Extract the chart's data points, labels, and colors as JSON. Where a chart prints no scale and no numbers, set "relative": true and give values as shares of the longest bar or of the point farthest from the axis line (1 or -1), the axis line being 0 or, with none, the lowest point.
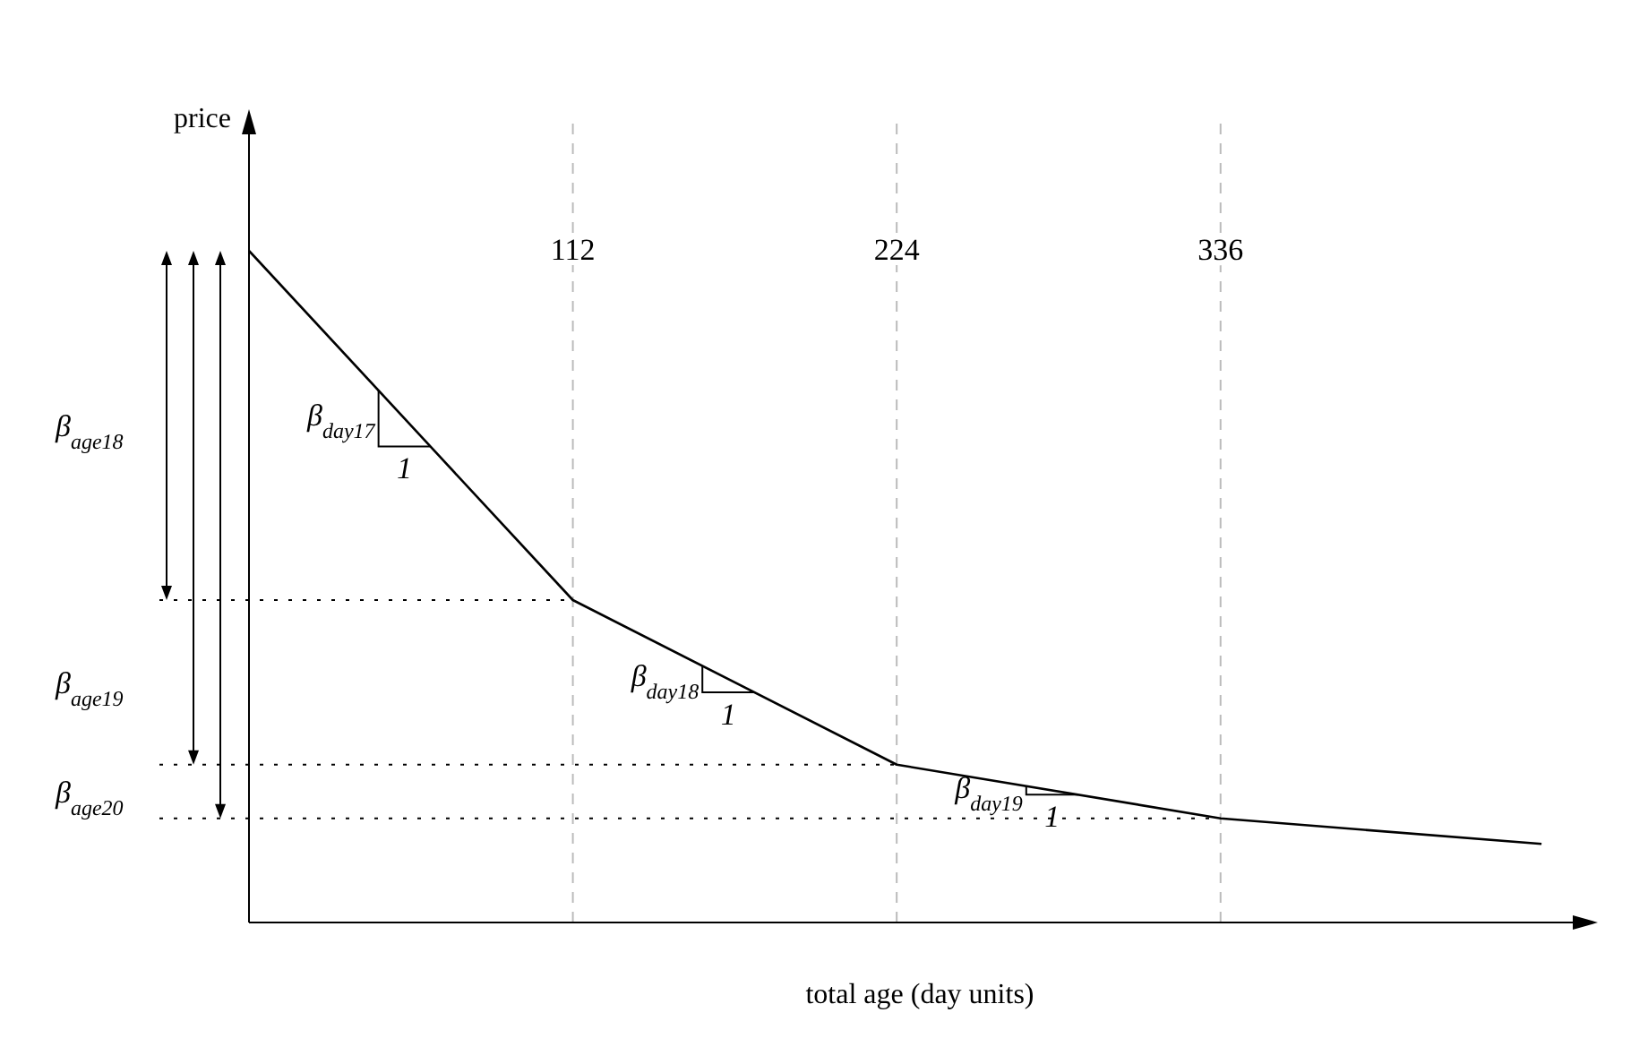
{
  "chart_data": {
    "type": "line",
    "relative": true,
    "xlabel": "total age (day units)",
    "ylabel": "price",
    "x": [
      0,
      112,
      224,
      336,
      447
    ],
    "series": [
      {
        "color": "#000000",
        "values": [
          1,
          0.48,
          0.235,
          0.155,
          0.117
        ]
      }
    ],
    "xlim": [
      0,
      464
    ],
    "xticks": [
      112,
      224,
      336
    ],
    "tick_labels": "x",
    "marker": "none",
    "line_style": "solid",
    "ref_lines": [
      {
        "axis": "x",
        "value": 112,
        "color": "#bbbbbb",
        "line_style": "dashed"
      },
      {
        "axis": "x",
        "value": 224,
        "color": "#bbbbbb",
        "line_style": "dashed"
      },
      {
        "axis": "x",
        "value": 336,
        "color": "#bbbbbb",
        "line_style": "dashed"
      },
      {
        "axis": "y",
        "value": 0.48,
        "color": "#000000",
        "line_style": "dotted"
      },
      {
        "axis": "y",
        "value": 0.235,
        "color": "#000000",
        "line_style": "dotted"
      },
      {
        "axis": "y",
        "value": 0.155,
        "color": "#000000",
        "line_style": "dotted"
      }
    ],
    "annotations": [
      "β$_{age18}$",
      "β$_{age19}$",
      "β$_{age20}$",
      "β$_{day17}$",
      "1",
      "β$_{day18}$",
      "1",
      "β$_{day19}$",
      "1"
    ]
  }
}
